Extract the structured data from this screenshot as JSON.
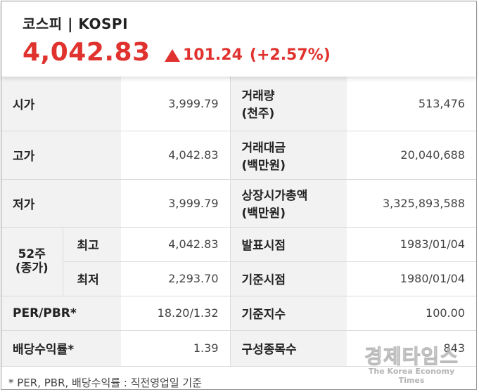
{
  "header": {
    "title": "코스피 | KOSPI",
    "price": "4,042.83",
    "change": "101.24",
    "change_pct": "(+2.57%)",
    "direction": "up",
    "accent_color": "#e0322e"
  },
  "rows": {
    "open": {
      "label": "시가",
      "value": "3,999.79"
    },
    "volume": {
      "label_line1": "거래량",
      "label_line2": "(천주)",
      "value": "513,476"
    },
    "high": {
      "label": "고가",
      "value": "4,042.83"
    },
    "trade_amount": {
      "label_line1": "거래대금",
      "label_line2": "(백만원)",
      "value": "20,040,688"
    },
    "low": {
      "label": "저가",
      "value": "3,999.79"
    },
    "market_cap": {
      "label_line1": "상장시가총액",
      "label_line2": "(백만원)",
      "value": "3,325,893,588"
    },
    "week52": {
      "label_line1": "52주",
      "label_line2": "(종가)"
    },
    "week52_high": {
      "label": "최고",
      "value": "4,042.83"
    },
    "announce_date": {
      "label": "발표시점",
      "value": "1983/01/04"
    },
    "week52_low": {
      "label": "최저",
      "value": "2,293.70"
    },
    "base_date": {
      "label": "기준시점",
      "value": "1980/01/04"
    },
    "per_pbr": {
      "label": "PER/PBR*",
      "value": "18.20/1.32"
    },
    "base_index": {
      "label": "기준지수",
      "value": "100.00"
    },
    "dividend_yield": {
      "label": "배당수익률*",
      "value": "1.39"
    },
    "constituents": {
      "label": "구성종목수",
      "value": "843"
    }
  },
  "footnote": "* PER, PBR, 배당수익률 : 직전영업일 기준",
  "watermark": {
    "korean": "경제타임스",
    "english": "The Korea Economy Times"
  }
}
